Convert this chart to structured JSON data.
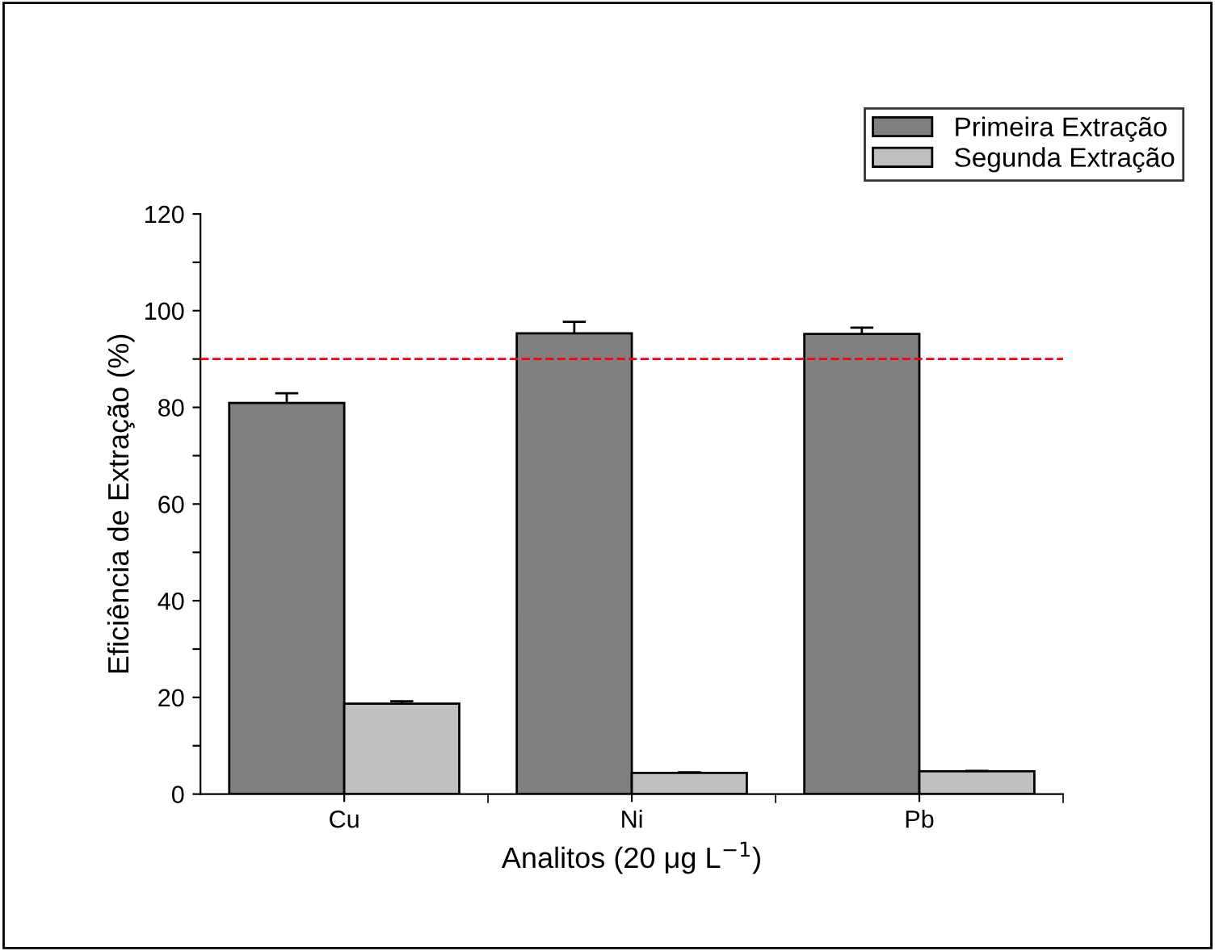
{
  "chart_data": {
    "type": "bar",
    "xlabel": "Analitos (20 μg L$^{−1}$)",
    "ylabel": "Eficiência de Extração (%)",
    "categories": [
      "Cu",
      "Ni",
      "Pb"
    ],
    "series": [
      {
        "name": "Primeira Extração",
        "color": "#808080",
        "values": [
          80.9,
          95.3,
          95.2
        ],
        "errors": [
          [
            80.9,
            82.9
          ],
          [
            95.3,
            97.7
          ],
          [
            95.2,
            96.5
          ]
        ]
      },
      {
        "name": "Segunda Extração",
        "color": "#c0c0c0",
        "values": [
          18.7,
          4.4,
          4.7
        ],
        "errors": [
          [
            18.7,
            19.2
          ],
          [
            4.4,
            4.5
          ],
          [
            4.7,
            4.8
          ]
        ]
      }
    ],
    "ylim": [
      0,
      120
    ],
    "yticks": [
      0,
      {
        "value": 10,
        "label": null
      },
      20,
      {
        "value": 30,
        "label": null
      },
      40,
      {
        "value": 50,
        "label": null
      },
      60,
      {
        "value": 70,
        "label": null
      },
      80,
      {
        "value": 90,
        "label": null
      },
      100,
      {
        "value": 110,
        "label": null
      },
      120
    ],
    "ref_lines": [
      {
        "axis": "y",
        "value": 90,
        "color": "#ff0000",
        "line_style": "dashed"
      }
    ],
    "legend": "top right",
    "grid": false
  }
}
